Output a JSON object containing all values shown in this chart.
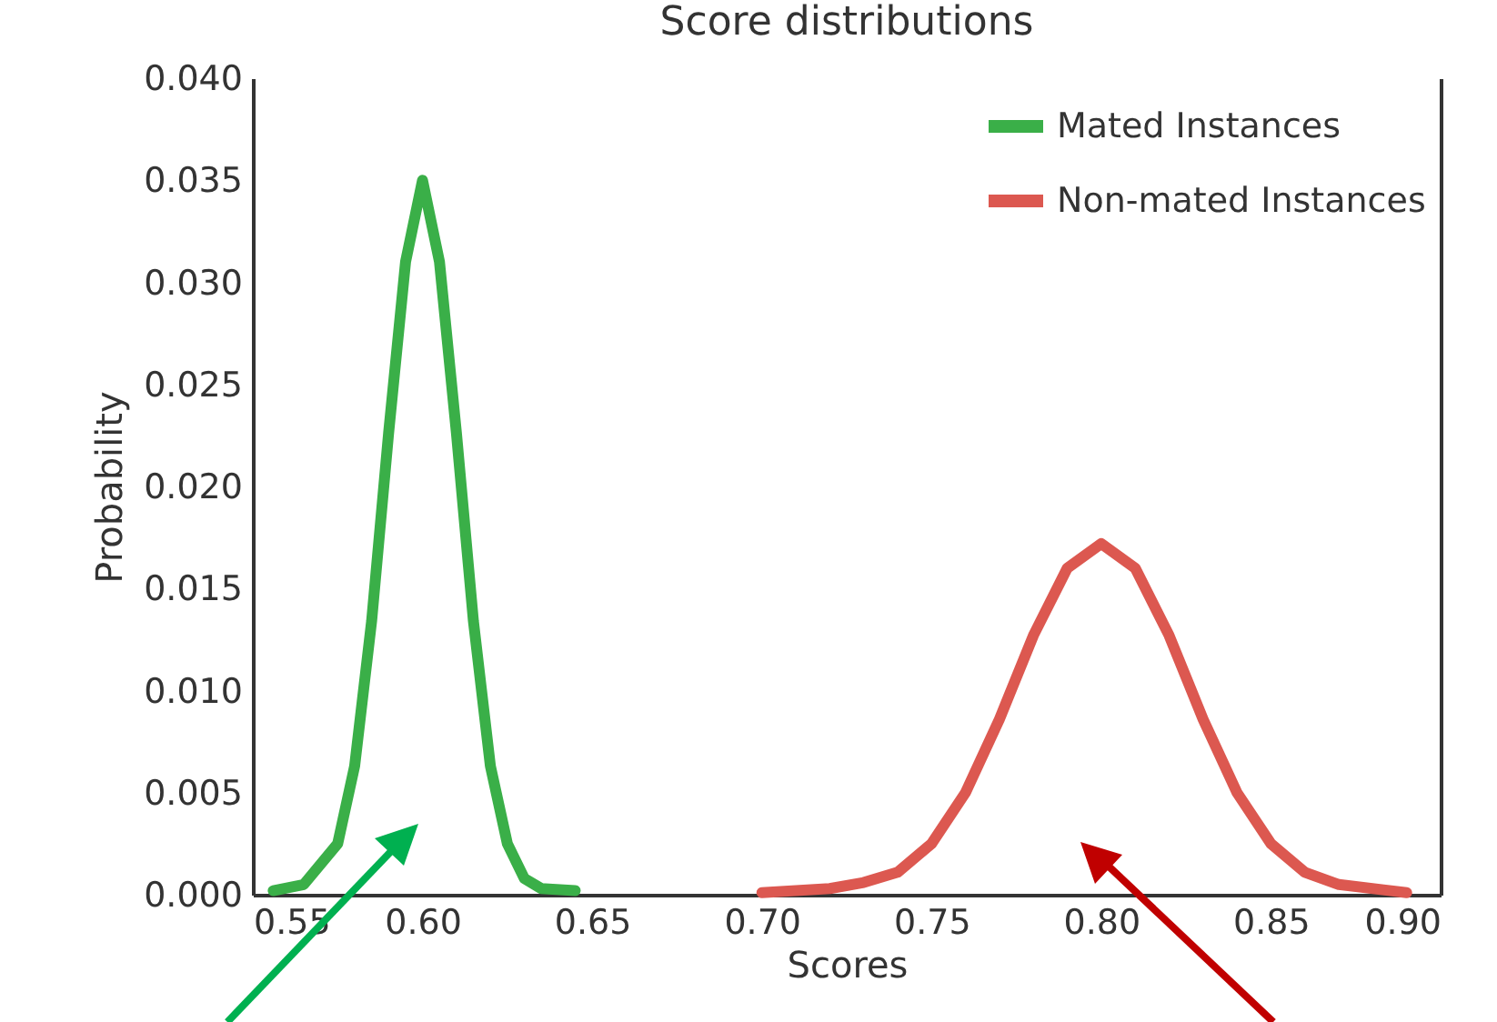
{
  "chart_data": {
    "type": "line",
    "title": "Score distributions",
    "xlabel": "Scores",
    "ylabel": "Probability",
    "xlim": [
      0.55,
      0.9
    ],
    "xticks": [
      {
        "value": 0.55,
        "label": "0.55"
      },
      {
        "value": 0.6,
        "label": "0.60"
      },
      {
        "value": 0.65,
        "label": "0.65"
      },
      {
        "value": 0.7,
        "label": "0.70"
      },
      {
        "value": 0.75,
        "label": "0.75"
      },
      {
        "value": 0.8,
        "label": "0.80"
      },
      {
        "value": 0.85,
        "label": "0.85"
      },
      {
        "value": 0.9,
        "label": "0.90"
      }
    ],
    "ylim": [
      0,
      0.04
    ],
    "yticks": [
      {
        "value": 0,
        "label": "0.000"
      },
      {
        "value": 0.005,
        "label": "0.005"
      },
      {
        "value": 0.01,
        "label": "0.010"
      },
      {
        "value": 0.015,
        "label": "0.015"
      },
      {
        "value": 0.02,
        "label": "0.020"
      },
      {
        "value": 0.025,
        "label": "0.025"
      },
      {
        "value": 0.03,
        "label": "0.030"
      },
      {
        "value": 0.035,
        "label": "0.035"
      },
      {
        "value": 0.04,
        "label": "0.040"
      }
    ],
    "grid": false,
    "legend": "top right",
    "series": [
      {
        "name": "Mated Instances",
        "color": "#3aaf48",
        "x": [
          0.556,
          0.565,
          0.575,
          0.58,
          0.585,
          0.59,
          0.595,
          0.6,
          0.605,
          0.61,
          0.615,
          0.62,
          0.625,
          0.63,
          0.635,
          0.645
        ],
        "values": [
          0.0002,
          0.0005,
          0.0025,
          0.0063,
          0.0134,
          0.0226,
          0.031,
          0.035,
          0.031,
          0.0226,
          0.0134,
          0.0063,
          0.0025,
          0.0008,
          0.0003,
          0.0002
        ]
      },
      {
        "name": "Non-mated Instances",
        "color": "#dc5850",
        "x": [
          0.7,
          0.72,
          0.73,
          0.74,
          0.75,
          0.76,
          0.77,
          0.78,
          0.79,
          0.8,
          0.81,
          0.82,
          0.83,
          0.84,
          0.85,
          0.86,
          0.87,
          0.89
        ],
        "values": [
          0.0001,
          0.0003,
          0.0006,
          0.0011,
          0.0025,
          0.005,
          0.0086,
          0.0127,
          0.016,
          0.0172,
          0.016,
          0.0127,
          0.0086,
          0.005,
          0.0025,
          0.0011,
          0.0005,
          0.0001
        ]
      }
    ]
  }
}
